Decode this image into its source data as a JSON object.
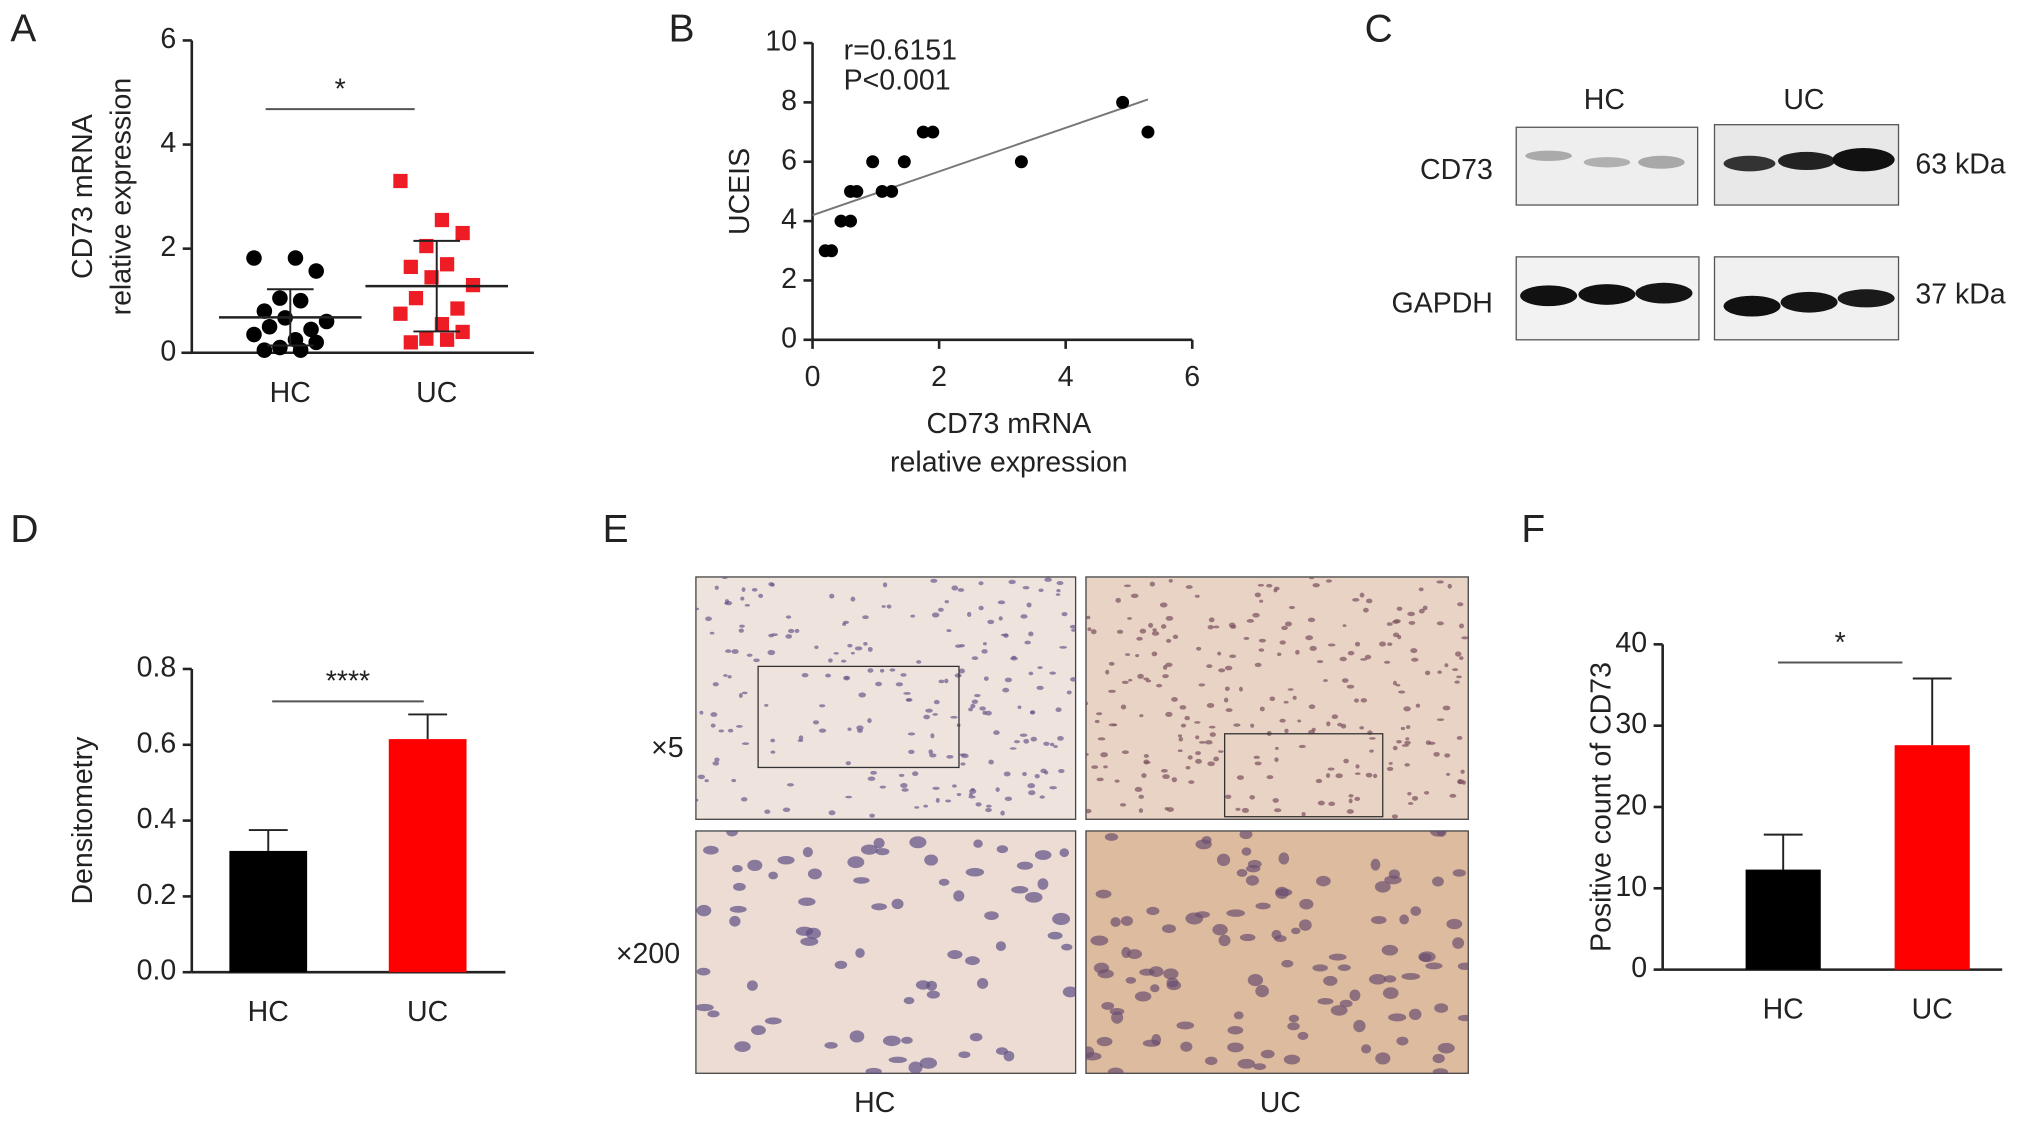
{
  "panel_labels": [
    "A",
    "B",
    "C",
    "D",
    "E",
    "F"
  ],
  "chart_data": [
    {
      "type": "dot",
      "ylabel": [
        "CD73 mRNA",
        "relative expression"
      ],
      "categories": [
        "HC",
        "UC"
      ],
      "ylim": [
        0,
        6
      ],
      "yticks": [
        0,
        2,
        4,
        6
      ],
      "groups": [
        {
          "values": [
            1.82,
            1.82,
            1.57,
            1.05,
            1.0,
            0.8,
            0.67,
            0.6,
            0.5,
            0.45,
            0.35,
            0.25,
            0.2,
            0.1,
            0.05,
            0.05
          ],
          "color": "#000000",
          "marker": "circle",
          "mean": 0.68,
          "sd": 0.54
        },
        {
          "values": [
            3.3,
            2.55,
            2.3,
            2.05,
            1.7,
            1.65,
            1.45,
            1.3,
            1.05,
            0.85,
            0.75,
            0.55,
            0.4,
            0.27,
            0.25,
            0.2
          ],
          "color": "#ee1c25",
          "marker": "square",
          "mean": 1.28,
          "sd": 0.87
        }
      ],
      "annotation": "*"
    },
    {
      "type": "scatter",
      "ylabel": "UCEIS",
      "xlabel": [
        "CD73 mRNA",
        "relative expression"
      ],
      "x": [
        0.2,
        0.3,
        0.45,
        0.6,
        0.6,
        0.7,
        0.95,
        1.1,
        1.25,
        1.45,
        1.75,
        1.9,
        3.3,
        4.9,
        5.3
      ],
      "y": [
        3,
        3,
        4,
        4,
        5,
        5,
        6,
        5,
        5,
        6,
        7,
        7,
        6,
        8,
        7
      ],
      "color": "#000000",
      "xlim": [
        0,
        6
      ],
      "ylim": [
        0,
        10
      ],
      "xticks": [
        0,
        2,
        4,
        6
      ],
      "yticks": [
        0,
        2,
        4,
        6,
        8,
        10
      ],
      "trendline": {
        "x": [
          0,
          5.3
        ],
        "y": [
          4.2,
          8.1
        ]
      },
      "annotations": [
        "r=0.6151",
        "P<0.001"
      ]
    },
    {
      "type": "bar",
      "ylabel": "Densitometry",
      "categories": [
        "HC",
        "UC"
      ],
      "values": [
        0.32,
        0.615
      ],
      "errors": [
        0.055,
        0.065
      ],
      "colors": [
        "#000000",
        "#ff0000"
      ],
      "ylim": [
        0,
        0.8
      ],
      "yticks": [
        {
          "value": 0,
          "label": "0.0"
        },
        0.2,
        0.4,
        0.6,
        0.8
      ],
      "annotation": "****"
    },
    {
      "type": "bar",
      "ylabel": "Positive count of CD73",
      "categories": [
        "HC",
        "UC"
      ],
      "values": [
        12.3,
        27.6
      ],
      "errors": [
        4.3,
        8.2
      ],
      "colors": [
        "#000000",
        "#ff0000"
      ],
      "ylim": [
        0,
        40
      ],
      "yticks": [
        0,
        10,
        20,
        30,
        40
      ],
      "annotation": "*"
    }
  ],
  "western_blot": {
    "groups": [
      "HC",
      "UC"
    ],
    "proteins": [
      "CD73",
      "GAPDH"
    ],
    "sizes": [
      "63 kDa",
      "37 kDa"
    ]
  },
  "ihc": {
    "magnifications": [
      "×5",
      "×200"
    ],
    "groups": [
      "HC",
      "UC"
    ]
  }
}
